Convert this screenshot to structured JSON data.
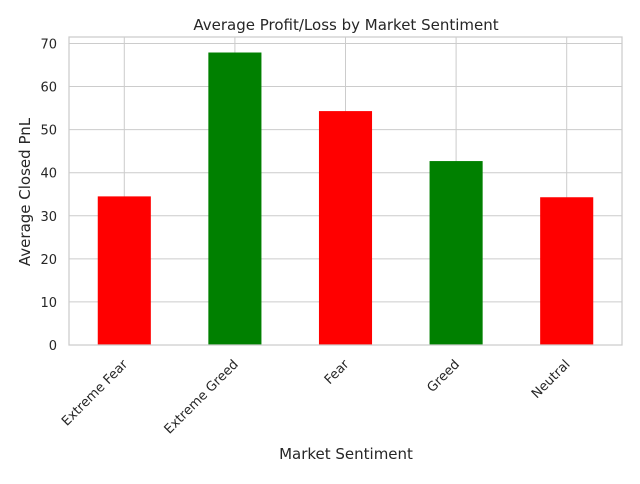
{
  "chart_data": {
    "type": "bar",
    "title": "Average Profit/Loss by Market Sentiment",
    "xlabel": "Market Sentiment",
    "ylabel": "Average Closed PnL",
    "categories": [
      "Extreme Fear",
      "Extreme Greed",
      "Fear",
      "Greed",
      "Neutral"
    ],
    "values": [
      34.5,
      67.9,
      54.3,
      42.7,
      34.3
    ],
    "bar_colors": [
      "#ff0000",
      "#008000",
      "#ff0000",
      "#008000",
      "#ff0000"
    ],
    "ylim": [
      0,
      71.5
    ],
    "yticks": [
      0,
      10,
      20,
      30,
      40,
      50,
      60,
      70
    ],
    "grid": true,
    "grid_color": "#cccccc",
    "legend": "none"
  }
}
